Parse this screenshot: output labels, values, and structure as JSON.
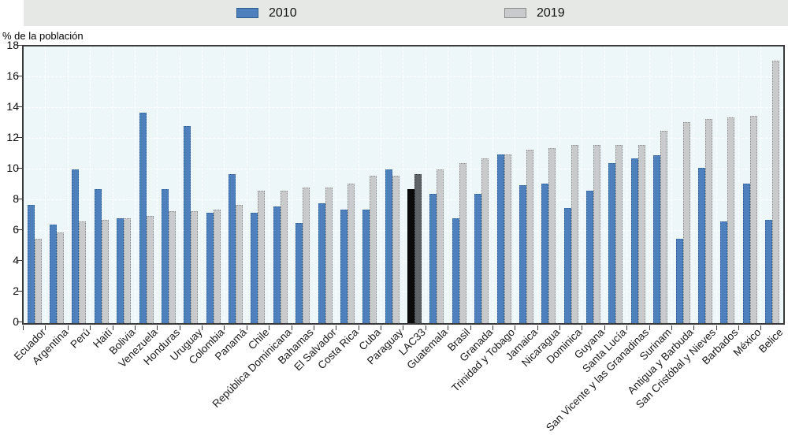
{
  "chart_data": {
    "type": "bar",
    "title": "",
    "ylabel": "% de la población",
    "xlabel": "",
    "ylim": [
      0,
      18
    ],
    "yticks": [
      0,
      2,
      4,
      6,
      8,
      10,
      12,
      14,
      16,
      18
    ],
    "grid": true,
    "legend_position": "top",
    "highlight_category": "LAC33",
    "categories": [
      "Ecuador",
      "Argentina",
      "Perú",
      "Haití",
      "Bolivia",
      "Venezuela",
      "Honduras",
      "Uruguay",
      "Colombia",
      "Panamá",
      "Chile",
      "República Dominicana",
      "Bahamas",
      "El Salvador",
      "Costa Rica",
      "Cuba",
      "Paraguay",
      "LAC33",
      "Guatemala",
      "Brasil",
      "Granada",
      "Trinidad y Tobago",
      "Jamaica",
      "Nicaragua",
      "Dominica",
      "Guyana",
      "Santa Lucía",
      "San Vicente y las Granadinas",
      "Surinam",
      "Antigua y Barbuda",
      "San Cristóbal y Nieves",
      "Barbados",
      "México",
      "Belice"
    ],
    "series": [
      {
        "name": "2010",
        "values": [
          7.7,
          6.4,
          10.0,
          8.7,
          6.8,
          13.7,
          8.7,
          12.8,
          7.2,
          9.7,
          7.2,
          7.6,
          6.5,
          7.8,
          7.4,
          7.4,
          10.0,
          8.7,
          8.4,
          6.8,
          8.4,
          11.0,
          9.0,
          9.1,
          7.5,
          8.6,
          10.4,
          10.7,
          10.9,
          5.5,
          10.1,
          6.6,
          9.1,
          6.7
        ]
      },
      {
        "name": "2019",
        "values": [
          5.5,
          5.9,
          6.6,
          6.7,
          6.8,
          7.0,
          7.3,
          7.3,
          7.4,
          7.7,
          8.6,
          8.6,
          8.8,
          8.8,
          9.1,
          9.6,
          9.6,
          9.7,
          10.0,
          10.4,
          10.7,
          11.0,
          11.3,
          11.4,
          11.6,
          11.6,
          11.6,
          11.6,
          12.5,
          13.1,
          13.3,
          13.4,
          13.5,
          17.1
        ]
      }
    ],
    "colors": {
      "series_2010": "#4d80bc",
      "series_2010_border": "#2e5d8e",
      "series_2019": "#c9cacb",
      "series_2019_border": "#8a8a8a",
      "highlight_2010": "#0b0b0b",
      "highlight_2010_border": "#000000",
      "highlight_2019": "#5d6367",
      "highlight_2019_border": "#303437",
      "plot_background": "#edf7fa",
      "legend_band_background": "#e6e8e5",
      "axis": "#3a3a3a"
    }
  }
}
